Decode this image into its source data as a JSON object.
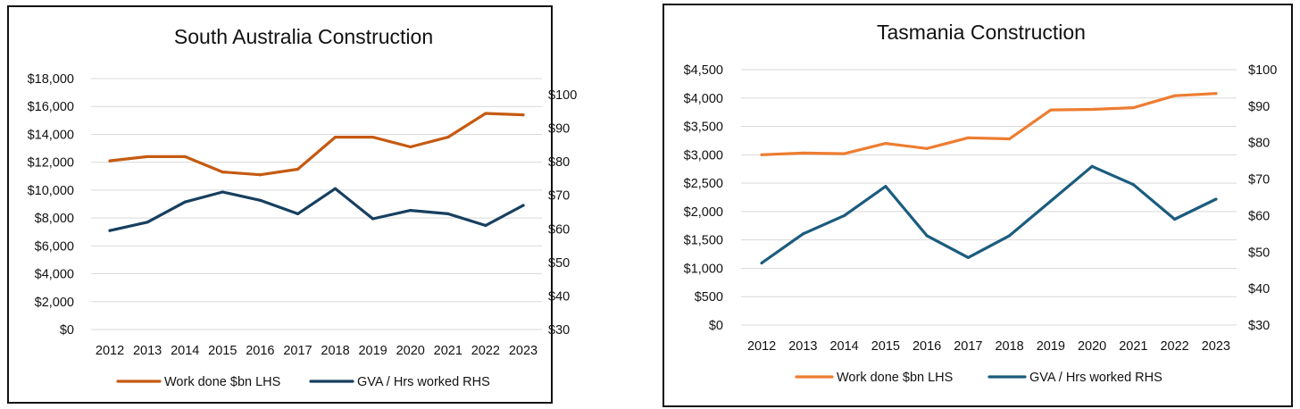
{
  "chart_data": [
    {
      "type": "line",
      "title": "South Australia Construction",
      "categories": [
        "2012",
        "2013",
        "2014",
        "2015",
        "2016",
        "2017",
        "2018",
        "2019",
        "2020",
        "2021",
        "2022",
        "2023"
      ],
      "left_axis": {
        "ylim": [
          0,
          18000
        ],
        "step": 2000,
        "tick_labels": [
          "$0",
          "$2,000",
          "$4,000",
          "$6,000",
          "$8,000",
          "$10,000",
          "$12,000",
          "$14,000",
          "$16,000",
          "$18,000"
        ]
      },
      "right_axis": {
        "ylim": [
          30,
          100
        ],
        "step": 10,
        "tick_labels": [
          "$30",
          "$40",
          "$50",
          "$60",
          "$70",
          "$80",
          "$90",
          "$100"
        ]
      },
      "grid": true,
      "legend_position": "bottom",
      "series": [
        {
          "name": "Work done $bn LHS",
          "axis": "left",
          "color": "#C55A11",
          "values": [
            12100,
            12400,
            12400,
            11300,
            11100,
            11500,
            13800,
            13800,
            13100,
            13800,
            15500,
            15400
          ]
        },
        {
          "name": "GVA / Hrs worked RHS",
          "axis": "right",
          "color": "#173F5F",
          "values": [
            59.5,
            62,
            68,
            71,
            68.5,
            64.5,
            72,
            63,
            65.5,
            64.5,
            61,
            67
          ]
        }
      ]
    },
    {
      "type": "line",
      "title": "Tasmania Construction",
      "categories": [
        "2012",
        "2013",
        "2014",
        "2015",
        "2016",
        "2017",
        "2018",
        "2019",
        "2020",
        "2021",
        "2022",
        "2023"
      ],
      "left_axis": {
        "ylim": [
          0,
          4500
        ],
        "step": 500,
        "tick_labels": [
          "$0",
          "$500",
          "$1,000",
          "$1,500",
          "$2,000",
          "$2,500",
          "$3,000",
          "$3,500",
          "$4,000",
          "$4,500"
        ]
      },
      "right_axis": {
        "ylim": [
          30,
          100
        ],
        "step": 10,
        "tick_labels": [
          "$30",
          "$40",
          "$50",
          "$60",
          "$70",
          "$80",
          "$90",
          "$100"
        ]
      },
      "grid": true,
      "legend_position": "bottom",
      "series": [
        {
          "name": "Work done $bn LHS",
          "axis": "left",
          "color": "#ED7D31",
          "values": [
            3000,
            3030,
            3020,
            3200,
            3110,
            3300,
            3280,
            3790,
            3800,
            3830,
            4040,
            4080
          ]
        },
        {
          "name": "GVA / Hrs worked RHS",
          "axis": "right",
          "color": "#1B5C7E",
          "values": [
            47,
            55,
            60,
            68,
            54.5,
            48.5,
            54.5,
            64,
            73.5,
            68.5,
            59,
            64.5
          ]
        }
      ]
    }
  ]
}
